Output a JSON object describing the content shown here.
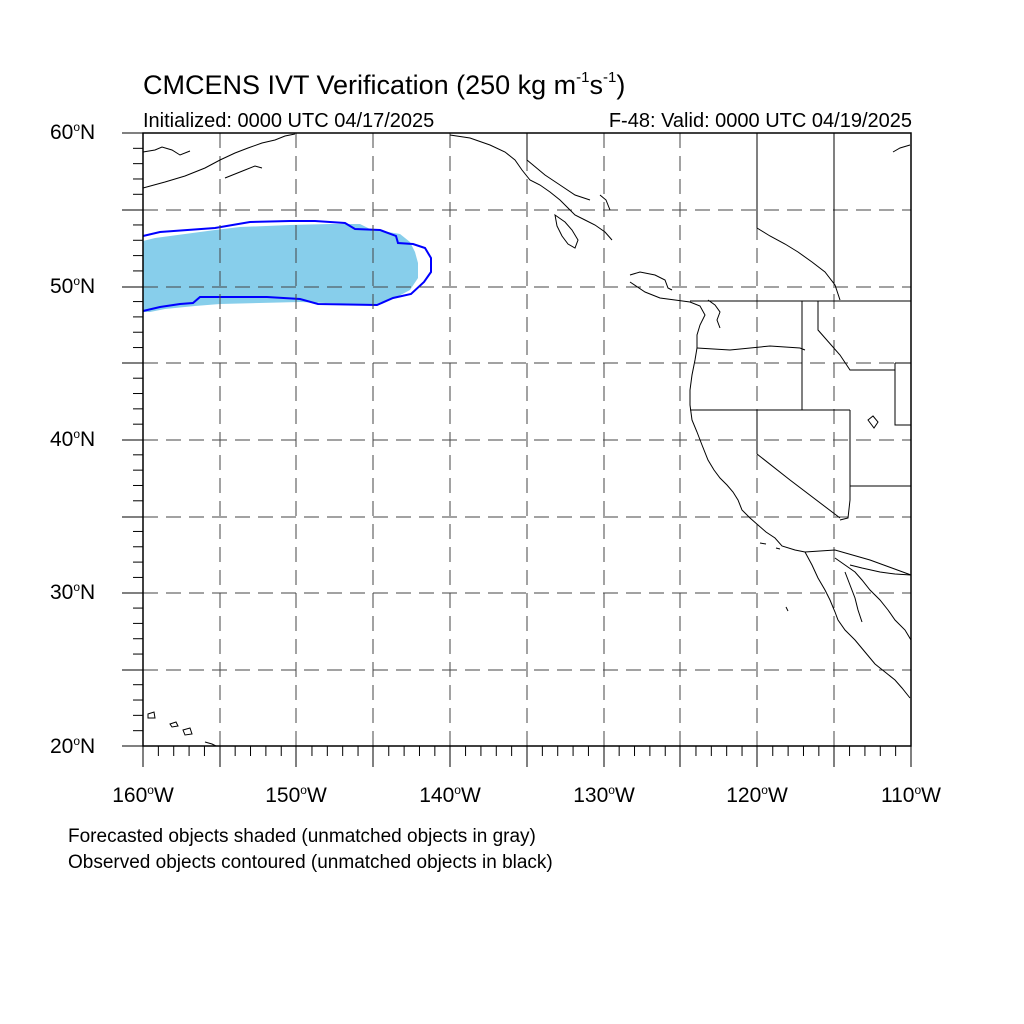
{
  "title": {
    "prefix": "CMCENS IVT Verification (250 kg m",
    "exp1": "-1",
    "mid": "s",
    "exp2": "-1",
    "suffix": ")"
  },
  "subtitle_left": "Initialized: 0000 UTC 04/17/2025",
  "subtitle_right": "F-48: Valid: 0000 UTC 04/19/2025",
  "lat_labels": [
    {
      "value": "60",
      "hemi": "N"
    },
    {
      "value": "50",
      "hemi": "N"
    },
    {
      "value": "40",
      "hemi": "N"
    },
    {
      "value": "30",
      "hemi": "N"
    },
    {
      "value": "20",
      "hemi": "N"
    }
  ],
  "lon_labels": [
    {
      "value": "160",
      "hemi": "W"
    },
    {
      "value": "150",
      "hemi": "W"
    },
    {
      "value": "140",
      "hemi": "W"
    },
    {
      "value": "130",
      "hemi": "W"
    },
    {
      "value": "120",
      "hemi": "W"
    },
    {
      "value": "110",
      "hemi": "W"
    }
  ],
  "footnotes": [
    "Forecasted objects shaded (unmatched objects in gray)",
    "Observed objects contoured (unmatched objects in black)"
  ],
  "colors": {
    "forecast_fill": "#87ceeb",
    "observed_contour": "#0000ff",
    "coastline": "#000000",
    "gridline": "#333333"
  },
  "map": {
    "lon_range": [
      -160,
      -110
    ],
    "lat_range": [
      20,
      60
    ],
    "grid_interval_deg": 5
  }
}
